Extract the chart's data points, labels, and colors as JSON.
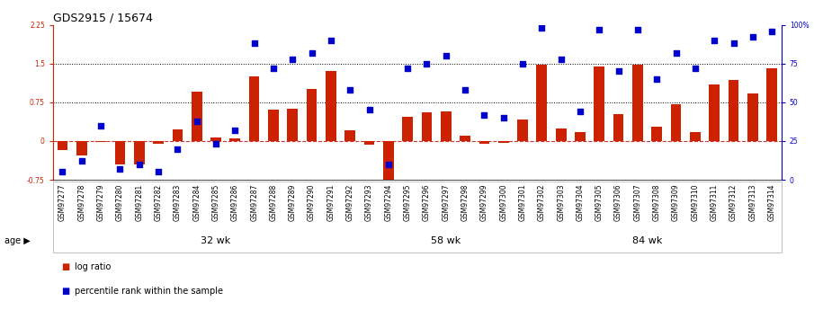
{
  "title": "GDS2915 / 15674",
  "samples": [
    "GSM97277",
    "GSM97278",
    "GSM97279",
    "GSM97280",
    "GSM97281",
    "GSM97282",
    "GSM97283",
    "GSM97284",
    "GSM97285",
    "GSM97286",
    "GSM97287",
    "GSM97288",
    "GSM97289",
    "GSM97290",
    "GSM97291",
    "GSM97292",
    "GSM97293",
    "GSM97294",
    "GSM97295",
    "GSM97296",
    "GSM97297",
    "GSM97298",
    "GSM97299",
    "GSM97300",
    "GSM97301",
    "GSM97302",
    "GSM97303",
    "GSM97304",
    "GSM97305",
    "GSM97306",
    "GSM97307",
    "GSM97308",
    "GSM97309",
    "GSM97310",
    "GSM97311",
    "GSM97312",
    "GSM97313",
    "GSM97314"
  ],
  "log_ratio": [
    -0.18,
    -0.28,
    -0.02,
    -0.45,
    -0.46,
    -0.05,
    0.22,
    0.95,
    0.07,
    0.05,
    1.25,
    0.6,
    0.62,
    1.0,
    1.35,
    0.2,
    -0.07,
    -0.82,
    0.47,
    0.55,
    0.57,
    0.1,
    -0.05,
    -0.03,
    0.42,
    1.48,
    0.25,
    0.17,
    1.45,
    0.52,
    1.48,
    0.28,
    0.72,
    0.18,
    1.1,
    1.18,
    0.93,
    1.4
  ],
  "percentile_rank": [
    5,
    12,
    35,
    7,
    10,
    5,
    20,
    38,
    23,
    32,
    88,
    72,
    78,
    82,
    90,
    58,
    45,
    10,
    72,
    75,
    80,
    58,
    42,
    40,
    75,
    98,
    78,
    44,
    97,
    70,
    97,
    65,
    82,
    72,
    90,
    88,
    92,
    96
  ],
  "groups": [
    {
      "label": "32 wk",
      "start": 0,
      "end": 17
    },
    {
      "label": "58 wk",
      "start": 17,
      "end": 24
    },
    {
      "label": "84 wk",
      "start": 24,
      "end": 38
    }
  ],
  "bar_color": "#cc2200",
  "dot_color": "#0000cc",
  "ylim_left": [
    -0.75,
    2.25
  ],
  "ylim_right": [
    0,
    100
  ],
  "hlines": [
    0.75,
    1.5
  ],
  "zero_line_color": "#cc3333",
  "tick_bg_color": "#dddddd",
  "group_band_color": "#88dd88",
  "legend_labels": [
    "log ratio",
    "percentile rank within the sample"
  ],
  "legend_colors": [
    "#cc2200",
    "#0000cc"
  ],
  "title_fontsize": 9,
  "tick_fontsize": 5.5,
  "group_label_fontsize": 8
}
